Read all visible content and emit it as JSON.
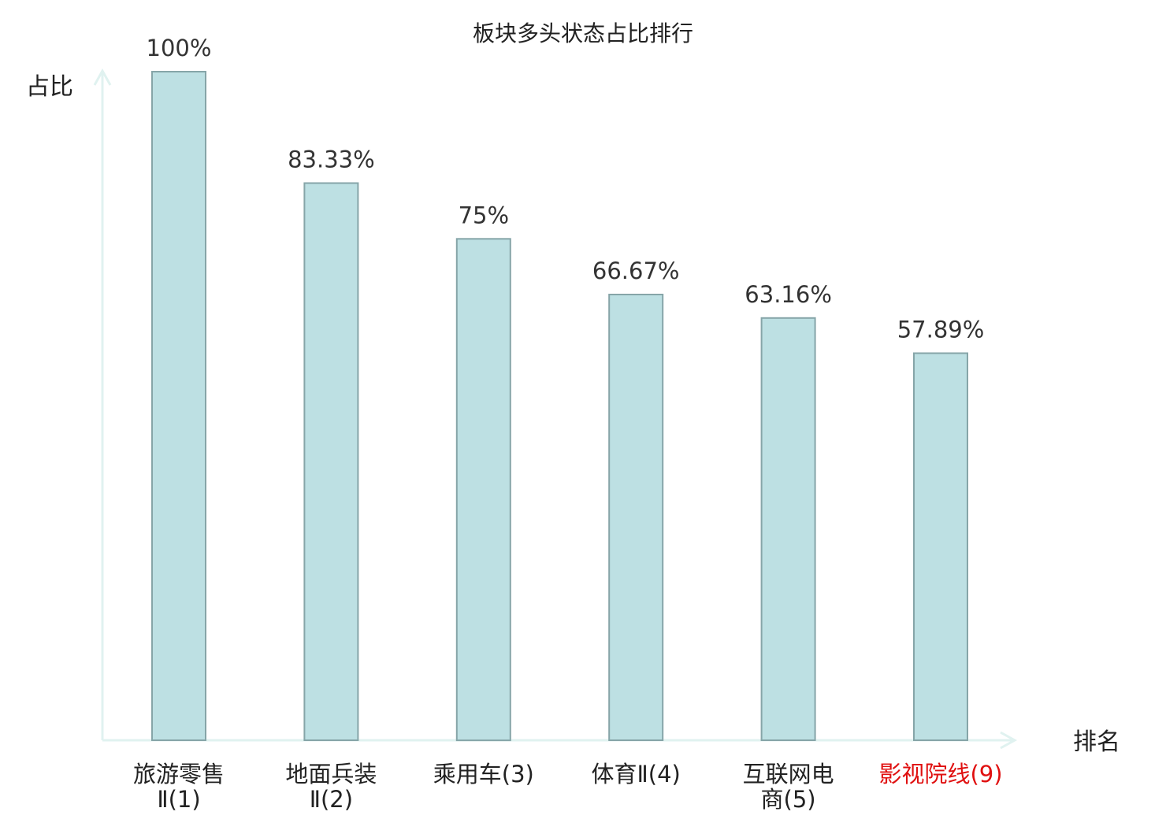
{
  "chart_data": {
    "type": "bar",
    "title": "板块多头状态占比排行",
    "ylabel": "占比",
    "xlabel": "排名",
    "ylim": [
      0,
      100
    ],
    "grid": false,
    "categories": [
      {
        "lines": [
          "旅游零售",
          "Ⅱ(1)"
        ],
        "highlight": false
      },
      {
        "lines": [
          "地面兵装",
          "Ⅱ(2)"
        ],
        "highlight": false
      },
      {
        "lines": [
          "乘用车(3)"
        ],
        "highlight": false
      },
      {
        "lines": [
          "体育Ⅱ(4)"
        ],
        "highlight": false
      },
      {
        "lines": [
          "互联网电",
          "商(5)"
        ],
        "highlight": false
      },
      {
        "lines": [
          "影视院线(9)"
        ],
        "highlight": true
      }
    ],
    "values": [
      100,
      83.33,
      75,
      66.67,
      63.16,
      57.89
    ],
    "value_labels": [
      "100%",
      "83.33%",
      "75%",
      "66.67%",
      "63.16%",
      "57.89%"
    ]
  },
  "colors": {
    "bar_fill": "#bde0e3",
    "bar_stroke": "#86a5a8",
    "axis": "#e0f2f0",
    "text": "#333333",
    "label": "#222222",
    "highlight": "#e01010"
  }
}
